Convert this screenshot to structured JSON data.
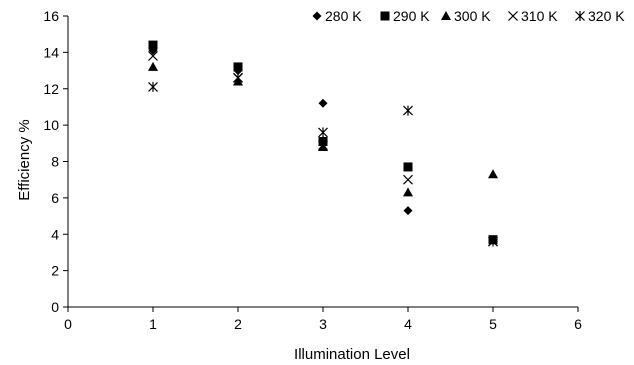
{
  "chart_data": {
    "type": "scatter",
    "title": "",
    "xlabel": "Illumination Level",
    "ylabel": "Efficiency %",
    "xlim": [
      0,
      6
    ],
    "ylim": [
      0,
      16
    ],
    "xticks": [
      "0",
      "1",
      "2",
      "3",
      "4",
      "5",
      "6"
    ],
    "yticks": [
      "0",
      "2",
      "4",
      "6",
      "8",
      "10",
      "12",
      "14",
      "16"
    ],
    "grid": false,
    "legend_position": "top-right",
    "series": [
      {
        "name": "280 K",
        "marker": "diamond",
        "points": [
          [
            1,
            14.1
          ],
          [
            2,
            13.0
          ],
          [
            3,
            11.2
          ],
          [
            4,
            5.3
          ],
          [
            5,
            3.7
          ]
        ]
      },
      {
        "name": "290 K",
        "marker": "square",
        "points": [
          [
            1,
            14.4
          ],
          [
            2,
            13.2
          ],
          [
            3,
            9.1
          ],
          [
            4,
            7.7
          ],
          [
            5,
            3.7
          ]
        ]
      },
      {
        "name": "300 K",
        "marker": "triangle",
        "points": [
          [
            1,
            13.2
          ],
          [
            2,
            12.4
          ],
          [
            3,
            8.8
          ],
          [
            4,
            6.3
          ],
          [
            5,
            7.3
          ]
        ]
      },
      {
        "name": "310 K",
        "marker": "x",
        "points": [
          [
            1,
            13.8
          ],
          [
            2,
            12.6
          ],
          [
            3,
            8.9
          ],
          [
            4,
            7.0
          ],
          [
            5,
            3.6
          ]
        ]
      },
      {
        "name": "320 K",
        "marker": "asterisk",
        "points": [
          [
            1,
            12.1
          ],
          [
            2,
            12.6
          ],
          [
            3,
            9.6
          ],
          [
            4,
            10.8
          ],
          [
            5,
            3.6
          ]
        ]
      }
    ]
  }
}
